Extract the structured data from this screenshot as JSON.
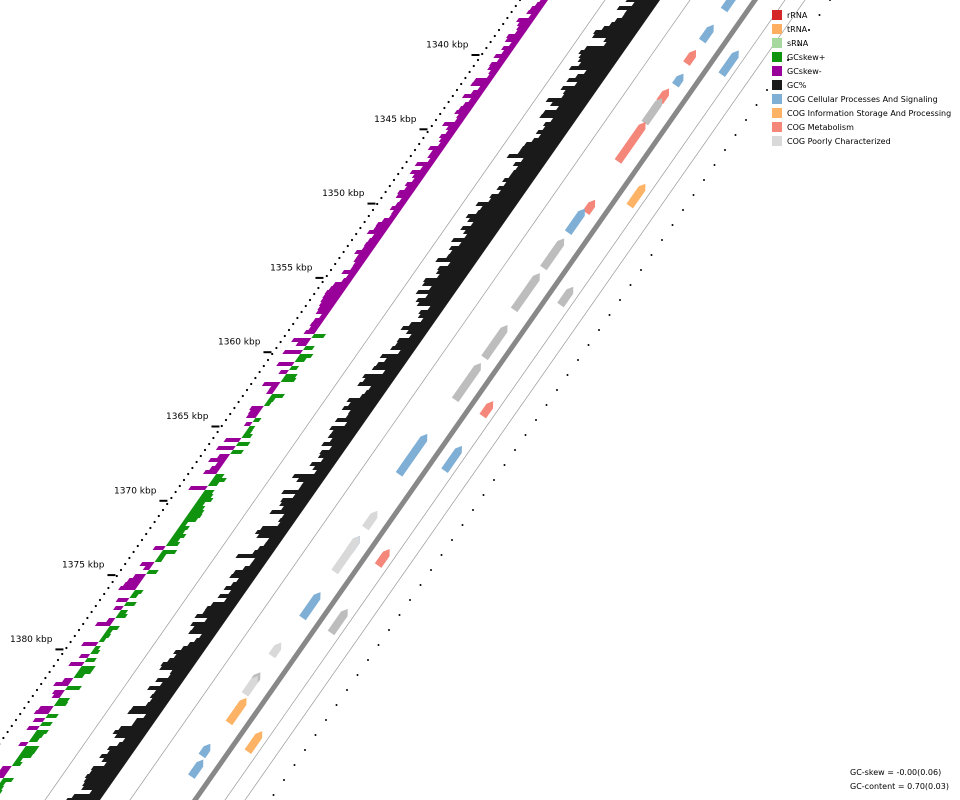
{
  "ticks": [
    "1340 kbp",
    "1345 kbp",
    "1350 kbp",
    "1355 kbp",
    "1360 kbp",
    "1365 kbp",
    "1370 kbp",
    "1375 kbp",
    "1380 kbp"
  ],
  "legend": [
    {
      "label": "rRNA",
      "color": "#d62728"
    },
    {
      "label": "tRNA",
      "color": "#fdae61"
    },
    {
      "label": "sRNA",
      "color": "#a6d8a0"
    },
    {
      "label": "GCskew+",
      "color": "#109410"
    },
    {
      "label": "GCskew-",
      "color": "#990099"
    },
    {
      "label": "GC%",
      "color": "#1a1a1a"
    },
    {
      "label": "COG Cellular Processes And Signaling",
      "color": "#80afd6"
    },
    {
      "label": "COG Information Storage And Processing",
      "color": "#fdb366"
    },
    {
      "label": "COG Metabolism",
      "color": "#f4877a"
    },
    {
      "label": "COG Poorly Characterized",
      "color": "#d9d9d9"
    }
  ],
  "stats": [
    "GC-skew = -0.00(0.06)",
    "GC-content = 0.70(0.03)"
  ]
}
